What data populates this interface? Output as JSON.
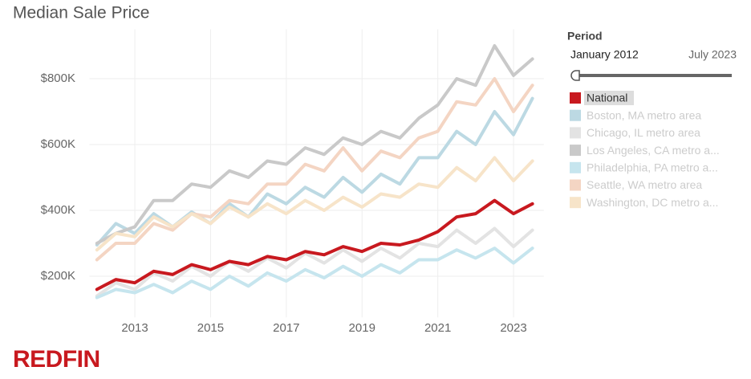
{
  "chart_data": {
    "type": "line",
    "title": "Median Sale Price",
    "x": [
      2012,
      2012.5,
      2013,
      2013.5,
      2014,
      2014.5,
      2015,
      2015.5,
      2016,
      2016.5,
      2017,
      2017.5,
      2018,
      2018.5,
      2019,
      2019.5,
      2020,
      2020.5,
      2021,
      2021.5,
      2022,
      2022.5,
      2023,
      2023.5
    ],
    "series": [
      {
        "name": "National",
        "color": "#c8191f",
        "values": [
          160,
          190,
          180,
          215,
          205,
          235,
          220,
          245,
          235,
          260,
          250,
          275,
          265,
          290,
          275,
          300,
          295,
          310,
          335,
          380,
          390,
          430,
          390,
          420
        ]
      },
      {
        "name": "Boston, MA metro area",
        "color": "#bcd9e3",
        "values": [
          295,
          360,
          330,
          390,
          350,
          395,
          360,
          420,
          380,
          450,
          420,
          470,
          440,
          500,
          455,
          510,
          480,
          560,
          560,
          640,
          600,
          700,
          630,
          740
        ]
      },
      {
        "name": "Chicago, IL metro area",
        "color": "#e3e3e3",
        "values": [
          140,
          180,
          160,
          210,
          185,
          230,
          200,
          245,
          215,
          255,
          225,
          270,
          240,
          280,
          245,
          285,
          255,
          300,
          290,
          340,
          300,
          345,
          290,
          340
        ]
      },
      {
        "name": "Los Angeles, CA metro a...",
        "color": "#c9c9c9",
        "values": [
          300,
          330,
          350,
          430,
          430,
          480,
          470,
          520,
          500,
          550,
          540,
          590,
          570,
          620,
          600,
          640,
          620,
          680,
          720,
          800,
          780,
          900,
          810,
          860
        ]
      },
      {
        "name": "Philadelphia, PA metro a...",
        "color": "#c6e5ee",
        "values": [
          135,
          160,
          150,
          175,
          150,
          185,
          160,
          200,
          170,
          210,
          185,
          220,
          195,
          230,
          200,
          235,
          210,
          250,
          250,
          280,
          255,
          285,
          240,
          285
        ]
      },
      {
        "name": "Seattle, WA metro area",
        "color": "#f4d5c3",
        "values": [
          250,
          300,
          300,
          360,
          340,
          390,
          380,
          430,
          420,
          480,
          480,
          540,
          520,
          590,
          520,
          580,
          560,
          620,
          640,
          730,
          720,
          800,
          700,
          780
        ]
      },
      {
        "name": "Washington, DC metro a...",
        "color": "#f7e4c9",
        "values": [
          280,
          330,
          320,
          380,
          350,
          390,
          360,
          410,
          380,
          420,
          390,
          430,
          400,
          440,
          410,
          450,
          440,
          480,
          470,
          530,
          490,
          560,
          490,
          550
        ]
      }
    ],
    "xlim": [
      2011.8,
      2023.8
    ],
    "xticks": [
      2013,
      2015,
      2017,
      2019,
      2021,
      2023
    ],
    "ylim": [
      75,
      950
    ],
    "yticks": [
      {
        "value": 200,
        "label": "$200K"
      },
      {
        "value": 400,
        "label": "$400K"
      },
      {
        "value": 600,
        "label": "$600K"
      },
      {
        "value": 800,
        "label": "$800K"
      }
    ],
    "grid": true,
    "highlighted": "National"
  },
  "period_filter": {
    "label": "Period",
    "start": "January 2012",
    "end": "July 2023"
  },
  "logo": "REDFIN"
}
